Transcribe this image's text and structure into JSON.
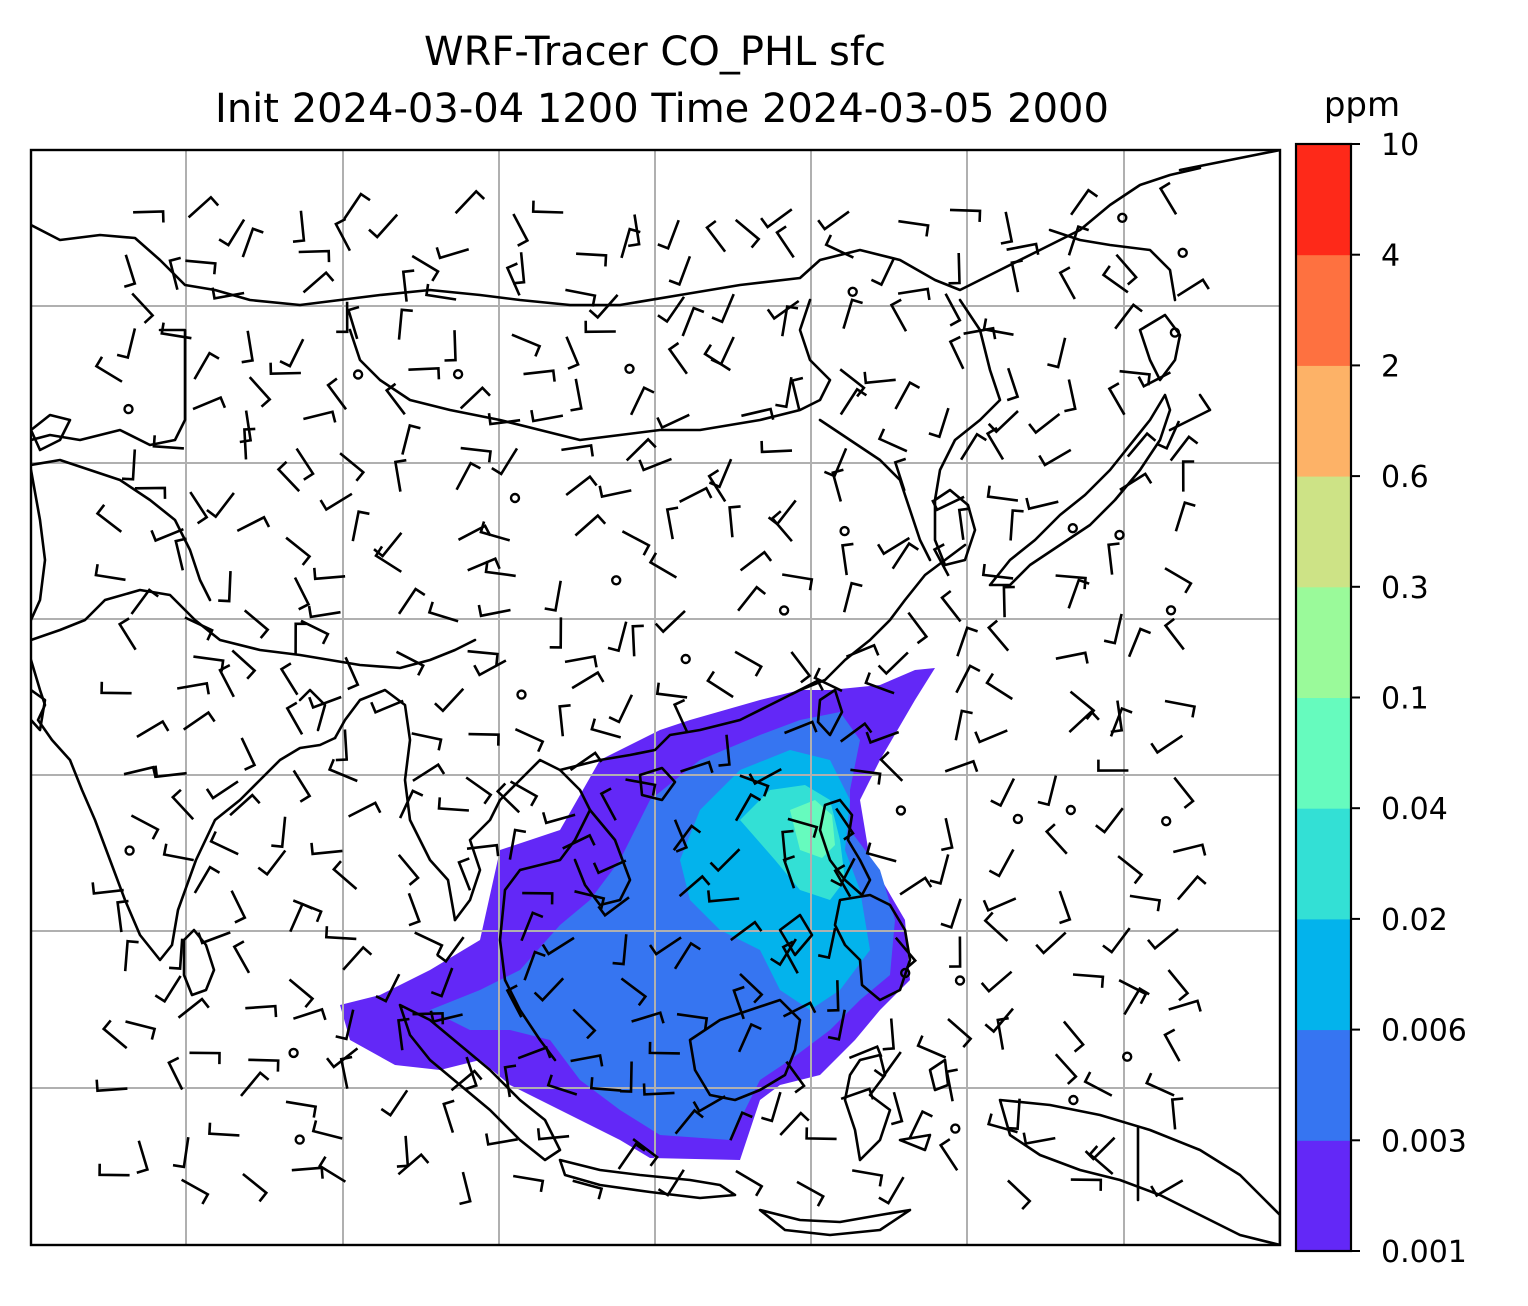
{
  "title": {
    "line1": "WRF-Tracer CO_PHL sfc",
    "line2": "Init 2024-03-04 1200 Time 2024-03-05 2000"
  },
  "colorbar": {
    "unit": "ppm",
    "levels": [
      "0.001",
      "0.003",
      "0.006",
      "0.02",
      "0.04",
      "0.1",
      "0.3",
      "0.6",
      "2",
      "4",
      "10"
    ],
    "colors": [
      "#6328f7",
      "#3675f1",
      "#03b3ec",
      "#33e0d5",
      "#66fbbe",
      "#9afa9a",
      "#cde386",
      "#fdb267",
      "#fe7140",
      "#fe2919"
    ]
  },
  "map": {
    "gridlines": true,
    "features": [
      "coastlines",
      "country-borders",
      "wind-barbs",
      "tracer-concentration-contours"
    ]
  }
}
